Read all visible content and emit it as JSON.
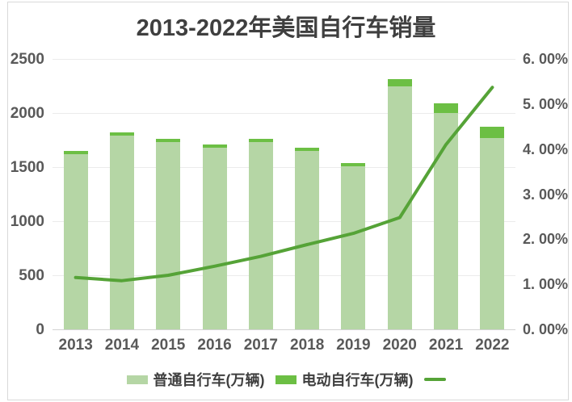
{
  "title": "2013-2022年美国自行车销量",
  "colors": {
    "regular_bar": "#b5d6a5",
    "ebike_bar": "#6cbf44",
    "line": "#55a337",
    "title_text": "#3f3f3f",
    "axis_text": "#595959",
    "gridline": "#ebebeb",
    "axis_line": "#d2d2d2",
    "frame_border": "#d9d9d9",
    "background": "#ffffff"
  },
  "chart_data": {
    "type": "combo-stacked-bar-line",
    "title": "2013-2022年美国自行车销量",
    "categories": [
      "2013",
      "2014",
      "2015",
      "2016",
      "2017",
      "2018",
      "2019",
      "2020",
      "2021",
      "2022"
    ],
    "series": [
      {
        "name": "普通自行车(万辆)",
        "type": "bar",
        "stack": true,
        "axis": "left",
        "values": [
          1620,
          1790,
          1730,
          1680,
          1730,
          1650,
          1510,
          2250,
          2000,
          1770
        ]
      },
      {
        "name": "电动自行车(万辆)",
        "type": "bar",
        "stack": true,
        "axis": "left",
        "values": [
          30,
          30,
          30,
          30,
          30,
          30,
          30,
          60,
          90,
          100
        ]
      },
      {
        "name": "",
        "type": "line",
        "axis": "right",
        "values": [
          1.15,
          1.08,
          1.2,
          1.4,
          1.62,
          1.88,
          2.13,
          2.48,
          4.1,
          5.37
        ]
      }
    ],
    "left_axis": {
      "min": 0,
      "max": 2500,
      "step": 500,
      "ticks": [
        "0",
        "500",
        "1000",
        "1500",
        "2000",
        "2500"
      ]
    },
    "right_axis": {
      "min": 0,
      "max": 6,
      "step": 1,
      "ticks": [
        "0. 00%",
        "1. 00%",
        "2. 00%",
        "3. 00%",
        "4. 00%",
        "5. 00%",
        "6. 00%"
      ]
    },
    "grid": true,
    "legend_position": "bottom"
  },
  "legend": {
    "items": [
      {
        "label": "普通自行车(万辆)",
        "swatch": "bar-light"
      },
      {
        "label": "电动自行车(万辆)",
        "swatch": "bar-dark"
      },
      {
        "label": "",
        "swatch": "line"
      }
    ]
  }
}
